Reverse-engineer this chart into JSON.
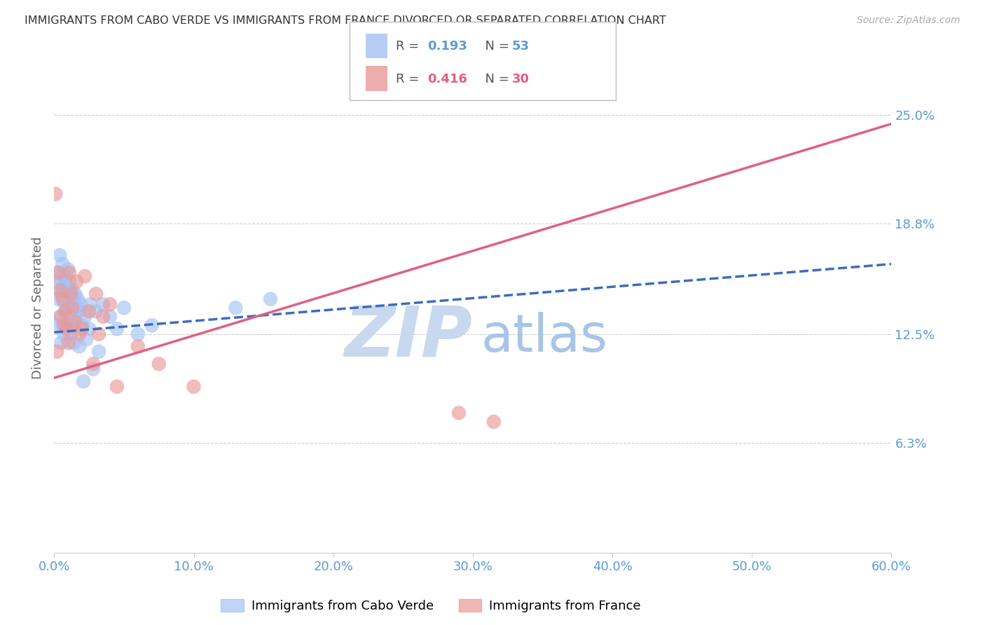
{
  "title": "IMMIGRANTS FROM CABO VERDE VS IMMIGRANTS FROM FRANCE DIVORCED OR SEPARATED CORRELATION CHART",
  "source_text": "Source: ZipAtlas.com",
  "ylabel": "Divorced or Separated",
  "xmin": 0.0,
  "xmax": 0.6,
  "ymin": 0.0,
  "ymax": 0.28,
  "yticks": [
    0.063,
    0.125,
    0.188,
    0.25
  ],
  "ytick_labels": [
    "6.3%",
    "12.5%",
    "18.8%",
    "25.0%"
  ],
  "xticks": [
    0.0,
    0.1,
    0.2,
    0.3,
    0.4,
    0.5,
    0.6
  ],
  "xtick_labels": [
    "0.0%",
    "10.0%",
    "20.0%",
    "30.0%",
    "40.0%",
    "50.0%",
    "60.0%"
  ],
  "cabo_verde_color": "#a4c2f4",
  "france_color": "#ea9999",
  "cabo_verde_label": "Immigrants from Cabo Verde",
  "france_label": "Immigrants from France",
  "R_cabo": 0.193,
  "N_cabo": 53,
  "R_france": 0.416,
  "N_france": 30,
  "cabo_verde_x": [
    0.001,
    0.002,
    0.003,
    0.003,
    0.004,
    0.004,
    0.005,
    0.005,
    0.005,
    0.006,
    0.006,
    0.006,
    0.007,
    0.007,
    0.007,
    0.008,
    0.008,
    0.009,
    0.009,
    0.01,
    0.01,
    0.011,
    0.011,
    0.012,
    0.012,
    0.013,
    0.013,
    0.014,
    0.014,
    0.015,
    0.015,
    0.016,
    0.017,
    0.018,
    0.018,
    0.019,
    0.02,
    0.021,
    0.022,
    0.023,
    0.025,
    0.026,
    0.028,
    0.03,
    0.032,
    0.035,
    0.04,
    0.045,
    0.05,
    0.06,
    0.07,
    0.13,
    0.155
  ],
  "cabo_verde_y": [
    0.155,
    0.16,
    0.145,
    0.13,
    0.17,
    0.135,
    0.155,
    0.148,
    0.12,
    0.165,
    0.15,
    0.13,
    0.158,
    0.143,
    0.125,
    0.155,
    0.138,
    0.15,
    0.128,
    0.162,
    0.14,
    0.155,
    0.13,
    0.148,
    0.125,
    0.15,
    0.132,
    0.145,
    0.12,
    0.148,
    0.135,
    0.14,
    0.145,
    0.138,
    0.118,
    0.142,
    0.13,
    0.098,
    0.135,
    0.122,
    0.128,
    0.142,
    0.105,
    0.138,
    0.115,
    0.142,
    0.135,
    0.128,
    0.14,
    0.125,
    0.13,
    0.14,
    0.145
  ],
  "france_x": [
    0.001,
    0.002,
    0.003,
    0.004,
    0.005,
    0.006,
    0.007,
    0.008,
    0.009,
    0.01,
    0.011,
    0.012,
    0.013,
    0.015,
    0.016,
    0.018,
    0.02,
    0.022,
    0.025,
    0.028,
    0.03,
    0.032,
    0.035,
    0.04,
    0.045,
    0.06,
    0.075,
    0.1,
    0.29,
    0.315
  ],
  "france_y": [
    0.205,
    0.115,
    0.16,
    0.15,
    0.135,
    0.145,
    0.13,
    0.138,
    0.128,
    0.12,
    0.16,
    0.148,
    0.14,
    0.132,
    0.155,
    0.125,
    0.128,
    0.158,
    0.138,
    0.108,
    0.148,
    0.125,
    0.135,
    0.142,
    0.095,
    0.118,
    0.108,
    0.095,
    0.08,
    0.075
  ],
  "watermark_zip": "ZIP",
  "watermark_atlas": "atlas",
  "watermark_color_zip": "#c8d8ee",
  "watermark_color_atlas": "#a8c4e8",
  "grid_color": "#cccccc",
  "tick_color": "#5b9bd5",
  "title_color": "#333333",
  "line_cabo_color": "#3d6cc0",
  "line_france_color": "#e06080",
  "cabo_R_color": "#5b9bd5",
  "france_R_color": "#e06080"
}
